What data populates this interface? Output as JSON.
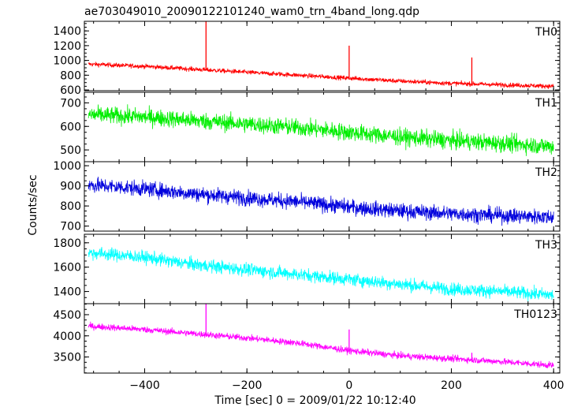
{
  "chart_data": {
    "type": "line",
    "title": "ae703049010_20090122101240_wam0_trn_4band_long.qdp",
    "ylabel": "Counts/sec",
    "xlabel": "Time [sec] 0 = 2009/01/22 10:12:40",
    "xlim": [
      -518,
      412
    ],
    "xticks": [
      -400,
      -200,
      0,
      200,
      400
    ],
    "x_range": [
      -510,
      400
    ],
    "panels": [
      {
        "name": "TH0",
        "color": "#ff0000",
        "ylim": [
          590,
          1530
        ],
        "yticks": [
          600,
          800,
          1000,
          1200,
          1400
        ],
        "trend": [
          [
            -510,
            950
          ],
          [
            -400,
            920
          ],
          [
            -300,
            880
          ],
          [
            -200,
            840
          ],
          [
            -100,
            800
          ],
          [
            0,
            760
          ],
          [
            100,
            720
          ],
          [
            200,
            690
          ],
          [
            300,
            670
          ],
          [
            400,
            650
          ]
        ],
        "noise": 22,
        "spikes": [
          [
            -280,
            1530
          ],
          [
            0,
            1200
          ],
          [
            240,
            1040
          ]
        ]
      },
      {
        "name": "TH1",
        "color": "#00ee00",
        "ylim": [
          450,
          745
        ],
        "yticks": [
          500,
          600,
          700
        ],
        "trend": [
          [
            -510,
            650
          ],
          [
            -400,
            640
          ],
          [
            -300,
            625
          ],
          [
            -200,
            610
          ],
          [
            -100,
            595
          ],
          [
            0,
            575
          ],
          [
            100,
            555
          ],
          [
            200,
            540
          ],
          [
            300,
            528
          ],
          [
            400,
            515
          ]
        ],
        "noise": 26,
        "spikes": []
      },
      {
        "name": "TH2",
        "color": "#0000dd",
        "ylim": [
          675,
          1020
        ],
        "yticks": [
          700,
          800,
          900,
          1000
        ],
        "trend": [
          [
            -510,
            905
          ],
          [
            -400,
            885
          ],
          [
            -300,
            860
          ],
          [
            -200,
            840
          ],
          [
            -100,
            820
          ],
          [
            0,
            795
          ],
          [
            100,
            775
          ],
          [
            200,
            762
          ],
          [
            300,
            752
          ],
          [
            400,
            745
          ]
        ],
        "noise": 27,
        "spikes": []
      },
      {
        "name": "TH3",
        "color": "#00ffff",
        "ylim": [
          1300,
          1870
        ],
        "yticks": [
          1400,
          1600,
          1800
        ],
        "trend": [
          [
            -510,
            1720
          ],
          [
            -400,
            1680
          ],
          [
            -300,
            1620
          ],
          [
            -200,
            1580
          ],
          [
            -100,
            1540
          ],
          [
            0,
            1500
          ],
          [
            100,
            1460
          ],
          [
            200,
            1420
          ],
          [
            300,
            1400
          ],
          [
            400,
            1370
          ]
        ],
        "noise": 38,
        "spikes": []
      },
      {
        "name": "TH0123",
        "color": "#ff00ff",
        "ylim": [
          3120,
          4760
        ],
        "yticks": [
          3500,
          4000,
          4500
        ],
        "trend": [
          [
            -510,
            4230
          ],
          [
            -400,
            4150
          ],
          [
            -300,
            4050
          ],
          [
            -200,
            3950
          ],
          [
            -100,
            3830
          ],
          [
            0,
            3650
          ],
          [
            100,
            3530
          ],
          [
            200,
            3460
          ],
          [
            300,
            3390
          ],
          [
            400,
            3300
          ]
        ],
        "noise": 55,
        "spikes": [
          [
            -280,
            4760
          ],
          [
            0,
            4150
          ],
          [
            240,
            3600
          ]
        ]
      }
    ]
  }
}
